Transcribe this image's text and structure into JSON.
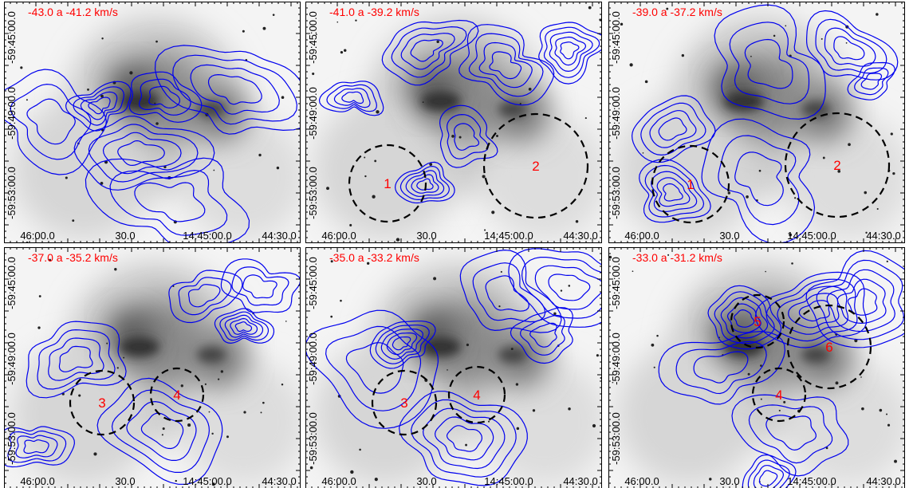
{
  "xticks": [
    "46:00.0",
    "30.0",
    "14:45:00.0",
    "44:30.0"
  ],
  "yticks": [
    "-59:45:00.0",
    "-59:49:00.0",
    "-59:53:00.0"
  ],
  "panels": [
    {
      "label": "-43.0 a -41.2 km/s",
      "regions": []
    },
    {
      "label": "-41.0 a -39.2 km/s",
      "regions": [
        "1",
        "2"
      ]
    },
    {
      "label": "-39.0 a -37.2 km/s",
      "regions": [
        "1",
        "2"
      ]
    },
    {
      "label": "-37.0 a -35.2 km/s",
      "regions": [
        "3",
        "4"
      ]
    },
    {
      "label": "-35.0 a -33.2 km/s",
      "regions": [
        "3",
        "4"
      ]
    },
    {
      "label": "-33.0 a -31.2 km/s",
      "regions": [
        "5",
        "6",
        "4"
      ]
    }
  ]
}
